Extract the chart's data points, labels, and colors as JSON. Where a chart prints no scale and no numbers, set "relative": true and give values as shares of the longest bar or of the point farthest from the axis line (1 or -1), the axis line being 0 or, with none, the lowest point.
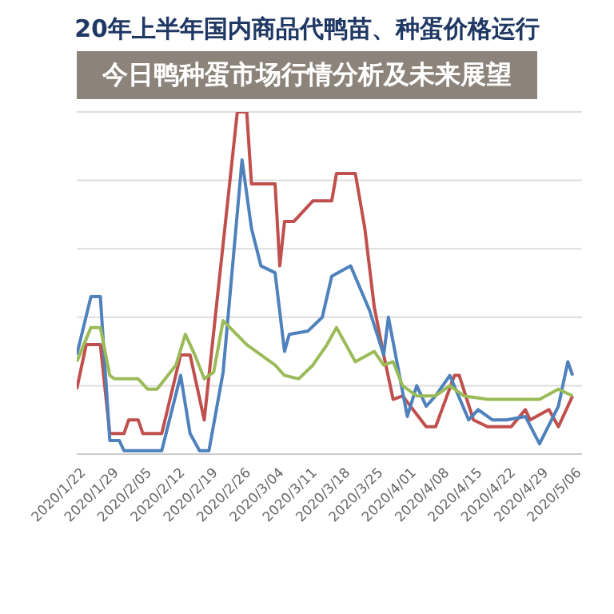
{
  "chart_data": {
    "type": "line",
    "title": "20年上半年国内商品代鸭苗、种蛋价格运行",
    "annotations": [
      "今日鸭种蛋市场行情分析及未来展望"
    ],
    "relative": true,
    "grid": "y",
    "legend": false,
    "marker": "none",
    "line_style": "solid",
    "xlim": [
      "2020-01-20",
      "2020-05-06"
    ],
    "xticks": [
      {
        "value": "2020-01-22",
        "label": "2020/1/22"
      },
      {
        "value": "2020-01-29",
        "label": "2020/1/29"
      },
      {
        "value": "2020-02-05",
        "label": "2020/2/05"
      },
      {
        "value": "2020-02-12",
        "label": "2020/2/12"
      },
      {
        "value": "2020-02-19",
        "label": "2020/2/19"
      },
      {
        "value": "2020-02-26",
        "label": "2020/2/26"
      },
      {
        "value": "2020-03-04",
        "label": "2020/3/04"
      },
      {
        "value": "2020-03-11",
        "label": "2020/3/11"
      },
      {
        "value": "2020-03-18",
        "label": "2020/3/18"
      },
      {
        "value": "2020-03-25",
        "label": "2020/3/25"
      },
      {
        "value": "2020-04-01",
        "label": "2020/4/01"
      },
      {
        "value": "2020-04-08",
        "label": "2020/4/08"
      },
      {
        "value": "2020-04-15",
        "label": "2020/4/15"
      },
      {
        "value": "2020-04-22",
        "label": "2020/4/22"
      },
      {
        "value": "2020-04-29",
        "label": "2020/4/29"
      },
      {
        "value": "2020-05-06",
        "label": "2020/5/06"
      }
    ],
    "series": [
      {
        "color": "#c0504d",
        "x": [
          "2020-01-20",
          "2020-01-22",
          "2020-01-25",
          "2020-01-27",
          "2020-01-30",
          "2020-01-31",
          "2020-02-02",
          "2020-02-03",
          "2020-02-07",
          "2020-02-11",
          "2020-02-13",
          "2020-02-16",
          "2020-02-23",
          "2020-02-25",
          "2020-02-26",
          "2020-03-02",
          "2020-03-03",
          "2020-03-04",
          "2020-03-06",
          "2020-03-10",
          "2020-03-14",
          "2020-03-15",
          "2020-03-19",
          "2020-03-20",
          "2020-03-21",
          "2020-03-23",
          "2020-03-25",
          "2020-03-27",
          "2020-03-29",
          "2020-04-03",
          "2020-04-05",
          "2020-04-09",
          "2020-04-10",
          "2020-04-13",
          "2020-04-16",
          "2020-04-21",
          "2020-04-24",
          "2020-04-25",
          "2020-04-29",
          "2020-05-01",
          "2020-05-04"
        ],
        "values": [
          0.19,
          0.32,
          0.32,
          0.06,
          0.06,
          0.1,
          0.1,
          0.06,
          0.06,
          0.29,
          0.29,
          0.1,
          1.0,
          1.0,
          0.79,
          0.79,
          0.55,
          0.68,
          0.68,
          0.74,
          0.74,
          0.82,
          0.82,
          0.74,
          0.66,
          0.43,
          0.29,
          0.16,
          0.17,
          0.08,
          0.08,
          0.23,
          0.23,
          0.1,
          0.08,
          0.08,
          0.13,
          0.1,
          0.13,
          0.08,
          0.17
        ]
      },
      {
        "color": "#4f81bd",
        "x": [
          "2020-01-20",
          "2020-01-23",
          "2020-01-25",
          "2020-01-27",
          "2020-01-29",
          "2020-01-30",
          "2020-02-07",
          "2020-02-11",
          "2020-02-13",
          "2020-02-15",
          "2020-02-17",
          "2020-02-20",
          "2020-02-24",
          "2020-02-26",
          "2020-02-28",
          "2020-03-02",
          "2020-03-04",
          "2020-03-05",
          "2020-03-09",
          "2020-03-12",
          "2020-03-14",
          "2020-03-18",
          "2020-03-22",
          "2020-03-25",
          "2020-03-26",
          "2020-03-30",
          "2020-04-01",
          "2020-04-03",
          "2020-04-05",
          "2020-04-08",
          "2020-04-12",
          "2020-04-14",
          "2020-04-17",
          "2020-04-20",
          "2020-04-24",
          "2020-04-27",
          "2020-05-01",
          "2020-05-03",
          "2020-05-04"
        ],
        "values": [
          0.29,
          0.46,
          0.46,
          0.04,
          0.04,
          0.01,
          0.01,
          0.23,
          0.06,
          0.01,
          0.01,
          0.24,
          0.86,
          0.66,
          0.55,
          0.53,
          0.3,
          0.35,
          0.36,
          0.4,
          0.52,
          0.55,
          0.42,
          0.29,
          0.4,
          0.11,
          0.2,
          0.14,
          0.17,
          0.23,
          0.1,
          0.13,
          0.1,
          0.1,
          0.11,
          0.03,
          0.14,
          0.27,
          0.23
        ]
      },
      {
        "color": "#9bbb59",
        "x": [
          "2020-01-20",
          "2020-01-23",
          "2020-01-25",
          "2020-01-27",
          "2020-01-28",
          "2020-02-02",
          "2020-02-04",
          "2020-02-06",
          "2020-02-10",
          "2020-02-12",
          "2020-02-14",
          "2020-02-16",
          "2020-02-18",
          "2020-02-20",
          "2020-02-25",
          "2020-02-28",
          "2020-03-02",
          "2020-03-04",
          "2020-03-07",
          "2020-03-10",
          "2020-03-13",
          "2020-03-15",
          "2020-03-19",
          "2020-03-23",
          "2020-03-25",
          "2020-03-27",
          "2020-03-29",
          "2020-04-01",
          "2020-04-05",
          "2020-04-08",
          "2020-04-11",
          "2020-04-16",
          "2020-04-22",
          "2020-04-27",
          "2020-05-01",
          "2020-05-04"
        ],
        "values": [
          0.27,
          0.37,
          0.37,
          0.23,
          0.22,
          0.22,
          0.19,
          0.19,
          0.26,
          0.35,
          0.29,
          0.22,
          0.24,
          0.39,
          0.32,
          0.29,
          0.26,
          0.23,
          0.22,
          0.26,
          0.32,
          0.37,
          0.27,
          0.3,
          0.26,
          0.27,
          0.2,
          0.17,
          0.17,
          0.2,
          0.17,
          0.16,
          0.16,
          0.16,
          0.19,
          0.17
        ]
      }
    ]
  }
}
